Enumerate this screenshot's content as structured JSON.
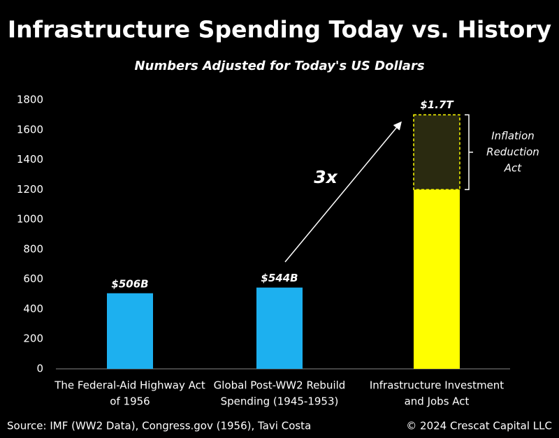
{
  "chart_data": {
    "type": "bar",
    "title": "Infrastructure Spending Today vs. History",
    "subtitle": "Numbers Adjusted for Today's US Dollars",
    "categories": [
      [
        "The Federal-Aid Highway Act",
        "of 1956"
      ],
      [
        "Global Post-WW2 Rebuild",
        "Spending (1945-1953)"
      ],
      [
        "Infrastructure Investment",
        "and Jobs Act"
      ]
    ],
    "values": [
      506,
      544,
      1200
    ],
    "value_labels": [
      "$506B",
      "$544B",
      null
    ],
    "colors": [
      "#1db0ef",
      "#1db0ef",
      "#ffff00"
    ],
    "added_segment": {
      "category": 2,
      "value": 500,
      "color": "#2a2a10",
      "label": [
        "Inflation",
        "Reduction",
        "Act"
      ]
    },
    "stack_total_label": "$1.7T",
    "arrow_label": "3x",
    "ylim": [
      0,
      1800
    ],
    "yticks": [
      0,
      200,
      400,
      600,
      800,
      1000,
      1200,
      1400,
      1600,
      1800
    ],
    "grid": false,
    "source": "Source: IMF (WW2 Data), Congress.gov (1956), Tavi Costa",
    "copyright": "© 2024 Crescat Capital LLC"
  }
}
